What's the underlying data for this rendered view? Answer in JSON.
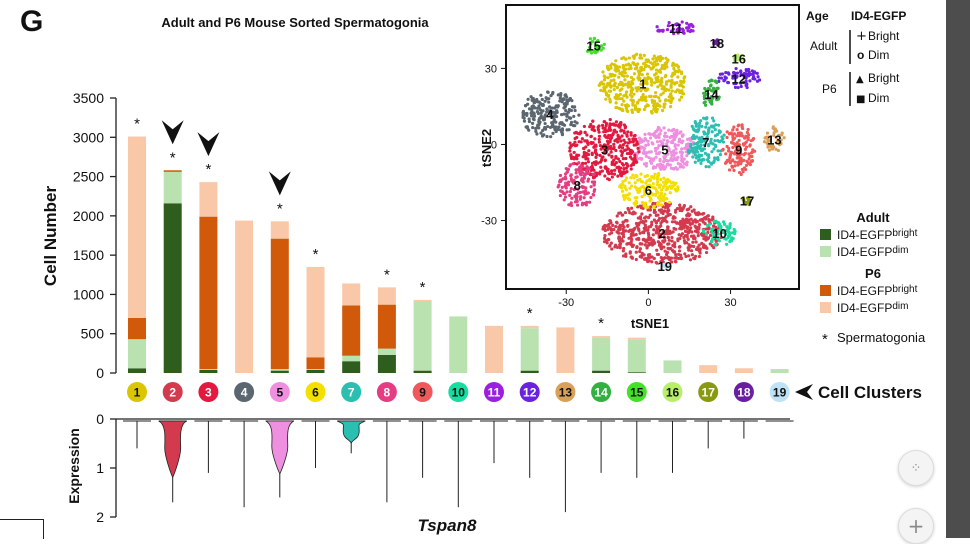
{
  "panel_letter": "G",
  "chart_data": [
    {
      "type": "bar",
      "title": "Adult and P6 Mouse Sorted Spermatogonia",
      "xlabel": "Cell Clusters",
      "ylabel": "Cell Number",
      "ylim": [
        0,
        3500
      ],
      "yticks": [
        0,
        500,
        1000,
        1500,
        2000,
        2500,
        3000,
        3500
      ],
      "grid": false,
      "stacked": true,
      "categories": [
        "1",
        "2",
        "3",
        "4",
        "5",
        "6",
        "7",
        "8",
        "9",
        "10",
        "11",
        "12",
        "13",
        "14",
        "15",
        "16",
        "17",
        "18",
        "19"
      ],
      "category_colors": [
        "#d9c500",
        "#d43a4e",
        "#e3193f",
        "#5b6670",
        "#ee8fe0",
        "#f3e000",
        "#2bbfb2",
        "#e43d82",
        "#f0595b",
        "#18dda0",
        "#9a1fe0",
        "#6b22e0",
        "#d9a05a",
        "#33b040",
        "#44e02a",
        "#b8ef68",
        "#8a9a10",
        "#6a1fa0",
        "#bde3f5"
      ],
      "series": [
        {
          "name": "Adult ID4-EGFP bright",
          "color": "#2e5d1e",
          "values": [
            60,
            2160,
            40,
            0,
            30,
            40,
            150,
            230,
            30,
            0,
            0,
            30,
            0,
            30,
            10,
            0,
            0,
            0,
            0
          ]
        },
        {
          "name": "Adult ID4-EGFP dim",
          "color": "#b9e2b0",
          "values": [
            370,
            400,
            10,
            0,
            20,
            10,
            70,
            80,
            880,
            720,
            0,
            540,
            0,
            420,
            420,
            160,
            0,
            0,
            50
          ]
        },
        {
          "name": "P6 ID4-EGFP bright",
          "color": "#d05a0a",
          "values": [
            270,
            20,
            1940,
            0,
            1660,
            150,
            640,
            560,
            0,
            0,
            0,
            0,
            0,
            0,
            0,
            0,
            0,
            0,
            0
          ]
        },
        {
          "name": "P6 ID4-EGFP dim",
          "color": "#f8c8a8",
          "values": [
            2310,
            0,
            440,
            1940,
            220,
            1150,
            280,
            220,
            20,
            0,
            600,
            30,
            580,
            20,
            20,
            0,
            100,
            60,
            0
          ]
        }
      ],
      "spermatogonia_marked": [
        "1",
        "2",
        "3",
        "5",
        "6",
        "8",
        "9",
        "12",
        "14"
      ],
      "arrowheads_over": [
        "2",
        "3",
        "5"
      ],
      "legend": {
        "placement": "right",
        "adult_label": "Adult",
        "p6_label": "P6",
        "bright_label": "ID4-EGFP",
        "bright_sup": "bright",
        "dim_label": "ID4-EGFP",
        "dim_sup": "dim",
        "spermatogonia_symbol": "*",
        "spermatogonia_label": "Spermatogonia"
      }
    },
    {
      "type": "scatter",
      "xlabel": "tSNE1",
      "ylabel": "tSNE2",
      "xticks": [
        -30,
        0,
        30
      ],
      "yticks": [
        -30,
        0,
        30
      ],
      "xlim": [
        -52,
        55
      ],
      "ylim": [
        -57,
        55
      ],
      "clusters": [
        {
          "label": "1",
          "color": "#d9c500",
          "x": -2,
          "y": 24,
          "rx": 16,
          "ry": 12
        },
        {
          "label": "2",
          "color": "#d43a4e",
          "x": 5,
          "y": -35,
          "rx": 22,
          "ry": 12
        },
        {
          "label": "3",
          "color": "#e3193f",
          "x": -16,
          "y": -2,
          "rx": 13,
          "ry": 12
        },
        {
          "label": "4",
          "color": "#5b6670",
          "x": -36,
          "y": 12,
          "rx": 11,
          "ry": 9
        },
        {
          "label": "5",
          "color": "#ee8fe0",
          "x": 6,
          "y": -2,
          "rx": 11,
          "ry": 9
        },
        {
          "label": "6",
          "color": "#f3e000",
          "x": 0,
          "y": -18,
          "rx": 11,
          "ry": 7
        },
        {
          "label": "7",
          "color": "#2bbfb2",
          "x": 21,
          "y": 1,
          "rx": 7,
          "ry": 10
        },
        {
          "label": "8",
          "color": "#e43d82",
          "x": -26,
          "y": -16,
          "rx": 7,
          "ry": 9
        },
        {
          "label": "9",
          "color": "#f0595b",
          "x": 33,
          "y": -2,
          "rx": 6,
          "ry": 10
        },
        {
          "label": "10",
          "color": "#18dda0",
          "x": 26,
          "y": -35,
          "rx": 6,
          "ry": 5
        },
        {
          "label": "11",
          "color": "#9a1fe0",
          "x": 10,
          "y": 46,
          "rx": 8,
          "ry": 2.5
        },
        {
          "label": "12",
          "color": "#6b22e0",
          "x": 33,
          "y": 26,
          "rx": 8,
          "ry": 4
        },
        {
          "label": "13",
          "color": "#d9a05a",
          "x": 46,
          "y": 2,
          "rx": 4,
          "ry": 5
        },
        {
          "label": "14",
          "color": "#33b040",
          "x": 23,
          "y": 20,
          "rx": 3.5,
          "ry": 6
        },
        {
          "label": "15",
          "color": "#44e02a",
          "x": -20,
          "y": 39,
          "rx": 4,
          "ry": 3
        },
        {
          "label": "16",
          "color": "#b8ef68",
          "x": 33,
          "y": 34,
          "rx": 2,
          "ry": 1.5
        },
        {
          "label": "17",
          "color": "#8a9a10",
          "x": 36,
          "y": -22,
          "rx": 1.5,
          "ry": 2
        },
        {
          "label": "18",
          "color": "#6a1fa0",
          "x": 25,
          "y": 40,
          "rx": 1.2,
          "ry": 1.2
        },
        {
          "label": "19",
          "color": "#bde3f5",
          "x": 6,
          "y": -48,
          "rx": 1,
          "ry": 1
        }
      ],
      "legend": {
        "placement": "right",
        "age_header": "Age",
        "marker_header": "ID4-EGFP",
        "groups": [
          {
            "age": "Adult",
            "items": [
              {
                "marker": "+",
                "label": "Bright"
              },
              {
                "marker": "o",
                "label": "Dim"
              }
            ]
          },
          {
            "age": "P6",
            "items": [
              {
                "marker": "▲",
                "label": "Bright"
              },
              {
                "marker": "■",
                "label": "Dim"
              }
            ]
          }
        ]
      }
    },
    {
      "type": "violin",
      "gene": "Tspan8",
      "ylabel": "Expression",
      "ylim": [
        0,
        2
      ],
      "yticks": [
        0,
        1,
        2
      ],
      "inverted": true,
      "max_values": [
        0.6,
        1.7,
        1.1,
        1.8,
        1.6,
        1.0,
        0.7,
        1.7,
        1.2,
        1.8,
        0.9,
        1.2,
        1.9,
        1.1,
        1.2,
        1.1,
        0.6,
        0.4,
        0.0
      ],
      "violin_clusters": [
        "2",
        "5",
        "7"
      ]
    }
  ],
  "controls": {
    "collapse_icon_glyph": "⁘",
    "zoom_in_glyph": "+"
  }
}
